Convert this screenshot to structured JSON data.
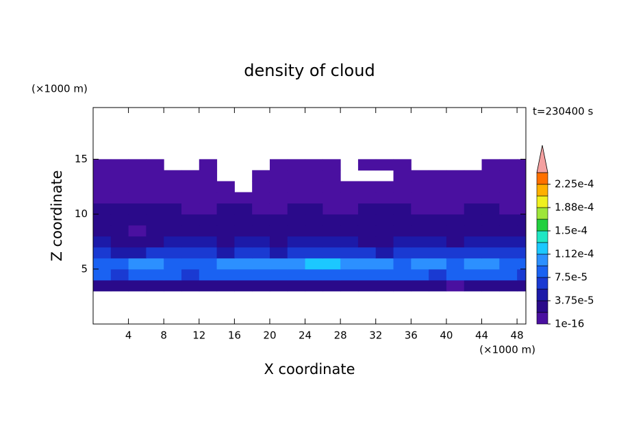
{
  "chart_data": {
    "type": "contour",
    "title": "density of cloud",
    "x_label": "X coordinate",
    "y_label": "Z coordinate",
    "x_unit": "(×1000 m)",
    "y_unit": "(×1000 m)",
    "time_label": "t=230400 s",
    "xlim": [
      0,
      49
    ],
    "ylim": [
      0,
      19.7
    ],
    "xticks": [
      4,
      8,
      12,
      16,
      20,
      24,
      28,
      32,
      36,
      40,
      44,
      48
    ],
    "yticks": [
      5,
      10,
      15
    ],
    "x": [
      1,
      3,
      5,
      7,
      9,
      11,
      13,
      15,
      17,
      19,
      21,
      23,
      25,
      27,
      29,
      31,
      33,
      35,
      37,
      39,
      41,
      43,
      45,
      47,
      49
    ],
    "z": [
      3.5,
      4.5,
      5.5,
      6.5,
      7.5,
      8.5,
      9.5,
      10.5,
      11.5,
      12.5,
      13.5,
      14.5
    ],
    "values": [
      [
        2.5e-05,
        2.5e-05,
        2.5e-05,
        2.5e-05,
        2.5e-05,
        2.5e-05,
        2.5e-05,
        2.5e-05,
        2.5e-05,
        2.5e-05,
        2.5e-05,
        2.5e-05,
        2.5e-05,
        2.5e-05,
        2.5e-05,
        2.5e-05,
        2.5e-05,
        2.5e-05,
        2.5e-05,
        2.5e-05,
        1e-05,
        2.5e-05,
        2.5e-05,
        2.5e-05,
        2.5e-05
      ],
      [
        8e-05,
        7e-05,
        9e-05,
        9e-05,
        8e-05,
        7e-05,
        8e-05,
        9e-05,
        9e-05,
        8e-05,
        9e-05,
        9e-05,
        8e-05,
        9e-05,
        8e-05,
        8e-05,
        9e-05,
        9e-05,
        8e-05,
        7e-05,
        8e-05,
        9e-05,
        8e-05,
        8e-05,
        7e-05
      ],
      [
        9e-05,
        9e-05,
        0.0001,
        0.000105,
        9e-05,
        8e-05,
        9e-05,
        0.000105,
        0.00011,
        0.000105,
        0.00011,
        0.000105,
        0.000115,
        0.000115,
        0.000105,
        0.00011,
        0.0001,
        9e-05,
        0.0001,
        0.000105,
        9e-05,
        0.00011,
        0.000105,
        9e-05,
        9e-05
      ],
      [
        6e-05,
        5e-05,
        5e-05,
        6e-05,
        6e-05,
        7e-05,
        6e-05,
        5e-05,
        6e-05,
        6e-05,
        5e-05,
        6e-05,
        7e-05,
        6e-05,
        7e-05,
        6e-05,
        5e-05,
        6e-05,
        6e-05,
        7e-05,
        6e-05,
        7e-05,
        6e-05,
        6e-05,
        7e-05
      ],
      [
        4.5e-05,
        3e-05,
        2e-05,
        3e-05,
        4.5e-05,
        4.5e-05,
        4e-05,
        3e-05,
        4.5e-05,
        4e-05,
        3e-05,
        4e-05,
        4.5e-05,
        4e-05,
        4.5e-05,
        3e-05,
        3e-05,
        4.5e-05,
        4e-05,
        4.5e-05,
        3e-05,
        4e-05,
        4.5e-05,
        4e-05,
        4.5e-05
      ],
      [
        3e-05,
        2.5e-05,
        1e-05,
        2.5e-05,
        3e-05,
        3e-05,
        2.5e-05,
        2.5e-05,
        3e-05,
        2.5e-05,
        2.5e-05,
        3e-05,
        2.5e-05,
        3e-05,
        2.5e-05,
        2.5e-05,
        2.5e-05,
        3e-05,
        2.5e-05,
        3e-05,
        2.5e-05,
        3e-05,
        2.5e-05,
        2.5e-05,
        3e-05
      ],
      [
        2.5e-05,
        2.5e-05,
        2.5e-05,
        2.5e-05,
        2e-05,
        2e-05,
        2.5e-05,
        2.5e-05,
        2e-05,
        2e-05,
        2.5e-05,
        2.5e-05,
        2e-05,
        2.5e-05,
        2.5e-05,
        2e-05,
        2.5e-05,
        2.5e-05,
        2e-05,
        2.5e-05,
        2.5e-05,
        2e-05,
        2.5e-05,
        2.5e-05,
        2e-05
      ],
      [
        2e-05,
        2e-05,
        2e-05,
        2.5e-05,
        2e-05,
        1e-05,
        1e-05,
        2e-05,
        2e-05,
        1e-05,
        1e-05,
        2e-05,
        2e-05,
        1e-05,
        1e-05,
        2e-05,
        2e-05,
        2e-05,
        1e-05,
        1e-05,
        1e-05,
        2e-05,
        2e-05,
        1e-05,
        1e-05
      ],
      [
        1e-05,
        1e-05,
        1e-05,
        1e-05,
        1e-05,
        1e-05,
        1e-05,
        1e-05,
        1e-05,
        1e-05,
        1e-05,
        1e-05,
        1e-05,
        1e-05,
        1e-05,
        1e-05,
        1e-05,
        1e-05,
        1e-05,
        1e-05,
        1e-05,
        1e-05,
        1e-05,
        1e-05,
        1e-05
      ],
      [
        1e-05,
        1e-05,
        1e-05,
        1e-05,
        1e-05,
        1e-05,
        1e-05,
        1e-05,
        null,
        1e-05,
        1e-05,
        1e-05,
        1e-05,
        1e-05,
        1e-05,
        1e-05,
        1e-05,
        1e-05,
        1e-05,
        1e-05,
        1e-05,
        1e-05,
        1e-05,
        1e-05,
        1e-05
      ],
      [
        1e-05,
        1e-05,
        1e-05,
        1e-05,
        1e-05,
        1e-05,
        1e-05,
        null,
        null,
        1e-05,
        1e-05,
        1e-05,
        1e-05,
        1e-05,
        null,
        null,
        null,
        1e-05,
        1e-05,
        1e-05,
        1e-05,
        1e-05,
        1e-05,
        1e-05,
        1e-05
      ],
      [
        1e-05,
        1e-05,
        1e-05,
        1e-05,
        null,
        null,
        1e-05,
        null,
        null,
        null,
        1e-05,
        1e-05,
        1e-05,
        1e-05,
        null,
        1e-05,
        1e-05,
        1e-05,
        null,
        null,
        null,
        null,
        1e-05,
        1e-05,
        1e-05
      ]
    ],
    "levels": [
      1e-16,
      1.875e-05,
      3.75e-05,
      5.625e-05,
      7.5e-05,
      9.375e-05,
      0.0001125,
      0.00013125,
      0.00015,
      0.00016875,
      0.0001875,
      0.00020625,
      0.000225,
      0.00024375
    ],
    "colors": [
      "#4a10a0",
      "#2a0a8a",
      "#1c1aa8",
      "#1a3ad2",
      "#1a62f2",
      "#2c90ff",
      "#1cc8ff",
      "#20e6c4",
      "#22d040",
      "#9ee63a",
      "#f0f020",
      "#ffb000",
      "#ff7000",
      "#e82010"
    ],
    "over_color": "#f4a0a0",
    "colorbar_ticks": [
      1e-16,
      {
        "value": 3.75e-05,
        "label": "3.75e-5"
      },
      {
        "value": 7.5e-05,
        "label": "7.5e-5"
      },
      {
        "value": 0.0001125,
        "label": "1.12e-4"
      },
      {
        "value": 0.00015,
        "label": "1.5e-4"
      },
      {
        "value": 0.0001875,
        "label": "1.88e-4"
      },
      {
        "value": 0.000225,
        "label": "2.25e-4"
      }
    ]
  }
}
